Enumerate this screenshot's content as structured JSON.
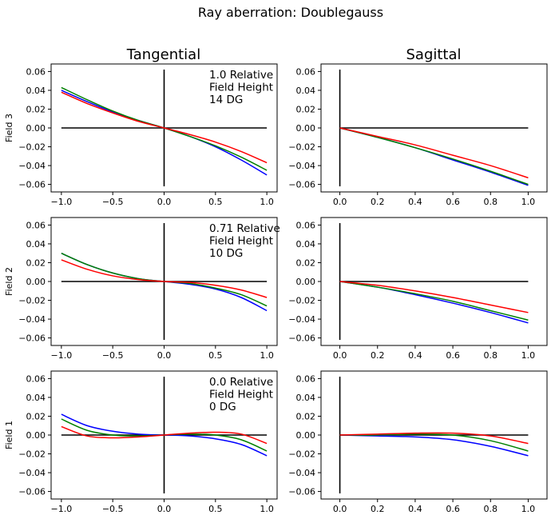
{
  "title": "Ray aberration: Doublegauss",
  "chart_data": {
    "type": "line",
    "title": "Ray aberration: Doublegauss",
    "columns": [
      "Tangential",
      "Sagittal"
    ],
    "series_colors": [
      "#0000ff",
      "#008000",
      "#ff0000"
    ],
    "ylim": [
      -0.068,
      0.068
    ],
    "yticks": [
      -0.06,
      -0.04,
      -0.02,
      0.0,
      0.02,
      0.04,
      0.06
    ],
    "ytick_labels": [
      "−0.06",
      "−0.04",
      "−0.02",
      "0.00",
      "0.02",
      "0.04",
      "0.06"
    ],
    "tangential_axis": {
      "xlim": [
        -1.1,
        1.1
      ],
      "xticks": [
        -1.0,
        -0.5,
        0.0,
        0.5,
        1.0
      ],
      "xtick_labels": [
        "−1.0",
        "−0.5",
        "0.0",
        "0.5",
        "1.0"
      ]
    },
    "sagittal_axis": {
      "xlim": [
        -0.1,
        1.1
      ],
      "xticks": [
        0.0,
        0.2,
        0.4,
        0.6,
        0.8,
        1.0
      ],
      "xtick_labels": [
        "0.0",
        "0.2",
        "0.4",
        "0.6",
        "0.8",
        "1.0"
      ]
    },
    "rows": [
      {
        "label": "Field 3",
        "annotation": [
          "1.0 Relative",
          "Field Height",
          "14 DG"
        ],
        "tangential": {
          "x": [
            -1.0,
            -0.75,
            -0.5,
            -0.25,
            0.0,
            0.25,
            0.5,
            0.75,
            1.0
          ],
          "series": [
            {
              "color": "#0000ff",
              "values": [
                0.04,
                0.028,
                0.017,
                0.008,
                0.0,
                -0.009,
                -0.02,
                -0.034,
                -0.05
              ]
            },
            {
              "color": "#008000",
              "values": [
                0.043,
                0.03,
                0.018,
                0.008,
                0.0,
                -0.009,
                -0.019,
                -0.031,
                -0.045
              ]
            },
            {
              "color": "#ff0000",
              "values": [
                0.038,
                0.026,
                0.016,
                0.007,
                0.0,
                -0.007,
                -0.015,
                -0.025,
                -0.037
              ]
            }
          ]
        },
        "sagittal": {
          "x": [
            0.0,
            0.2,
            0.4,
            0.6,
            0.8,
            1.0
          ],
          "series": [
            {
              "color": "#0000ff",
              "values": [
                0.0,
                -0.01,
                -0.021,
                -0.034,
                -0.047,
                -0.061
              ]
            },
            {
              "color": "#008000",
              "values": [
                0.0,
                -0.01,
                -0.021,
                -0.033,
                -0.046,
                -0.06
              ]
            },
            {
              "color": "#ff0000",
              "values": [
                0.0,
                -0.009,
                -0.018,
                -0.029,
                -0.04,
                -0.053
              ]
            }
          ]
        }
      },
      {
        "label": "Field 2",
        "annotation": [
          "0.71 Relative",
          "Field Height",
          "10 DG"
        ],
        "tangential": {
          "x": [
            -1.0,
            -0.75,
            -0.5,
            -0.25,
            0.0,
            0.25,
            0.5,
            0.75,
            1.0
          ],
          "series": [
            {
              "color": "#0000ff",
              "values": [
                0.03,
                0.018,
                0.009,
                0.003,
                0.0,
                -0.003,
                -0.008,
                -0.017,
                -0.031
              ]
            },
            {
              "color": "#008000",
              "values": [
                0.03,
                0.018,
                0.009,
                0.003,
                0.0,
                -0.002,
                -0.007,
                -0.014,
                -0.026
              ]
            },
            {
              "color": "#ff0000",
              "values": [
                0.023,
                0.013,
                0.006,
                0.002,
                0.0,
                -0.001,
                -0.004,
                -0.009,
                -0.017
              ]
            }
          ]
        },
        "sagittal": {
          "x": [
            0.0,
            0.2,
            0.4,
            0.6,
            0.8,
            1.0
          ],
          "series": [
            {
              "color": "#0000ff",
              "values": [
                0.0,
                -0.006,
                -0.014,
                -0.023,
                -0.033,
                -0.044
              ]
            },
            {
              "color": "#008000",
              "values": [
                0.0,
                -0.006,
                -0.013,
                -0.021,
                -0.031,
                -0.041
              ]
            },
            {
              "color": "#ff0000",
              "values": [
                0.0,
                -0.004,
                -0.01,
                -0.017,
                -0.025,
                -0.033
              ]
            }
          ]
        }
      },
      {
        "label": "Field 1",
        "annotation": [
          "0.0 Relative",
          "Field Height",
          "0 DG"
        ],
        "tangential": {
          "x": [
            -1.0,
            -0.75,
            -0.5,
            -0.25,
            0.0,
            0.25,
            0.5,
            0.75,
            1.0
          ],
          "series": [
            {
              "color": "#0000ff",
              "values": [
                0.022,
                0.01,
                0.004,
                0.001,
                0.0,
                -0.001,
                -0.004,
                -0.01,
                -0.022
              ]
            },
            {
              "color": "#008000",
              "values": [
                0.017,
                0.005,
                0.0,
                -0.001,
                0.0,
                0.001,
                0.0,
                -0.005,
                -0.017
              ]
            },
            {
              "color": "#ff0000",
              "values": [
                0.009,
                -0.001,
                -0.003,
                -0.002,
                0.0,
                0.002,
                0.003,
                0.001,
                -0.009
              ]
            }
          ]
        },
        "sagittal": {
          "x": [
            0.0,
            0.2,
            0.4,
            0.6,
            0.8,
            1.0
          ],
          "series": [
            {
              "color": "#0000ff",
              "values": [
                0.0,
                -0.001,
                -0.002,
                -0.005,
                -0.012,
                -0.022
              ]
            },
            {
              "color": "#008000",
              "values": [
                0.0,
                0.0,
                0.001,
                0.0,
                -0.006,
                -0.017
              ]
            },
            {
              "color": "#ff0000",
              "values": [
                0.0,
                0.001,
                0.002,
                0.002,
                -0.001,
                -0.009
              ]
            }
          ]
        }
      }
    ]
  }
}
